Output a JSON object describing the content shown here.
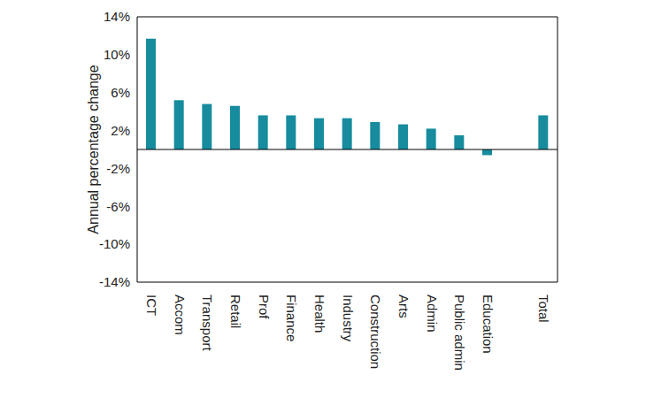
{
  "chart_data": {
    "type": "bar",
    "y_label": "Annual percentage change",
    "categories": [
      "ICT",
      "Accom",
      "Transport",
      "Retail",
      "Prof",
      "Finance",
      "Health",
      "Industry",
      "Construction",
      "Arts",
      "Admin",
      "Public admin",
      "Education",
      null,
      "Total"
    ],
    "values": [
      11.7,
      5.2,
      4.8,
      4.6,
      3.6,
      3.6,
      3.3,
      3.3,
      2.9,
      2.65,
      2.2,
      1.5,
      -0.6,
      null,
      3.6
    ],
    "color": "#168c9e",
    "ylim": [
      -14,
      14
    ],
    "yticks": [
      {
        "value": -14,
        "label": "-14%"
      },
      {
        "value": -10,
        "label": "-10%"
      },
      {
        "value": -6,
        "label": "-6%"
      },
      {
        "value": -2,
        "label": "-2%"
      },
      {
        "value": 2,
        "label": "2%"
      },
      {
        "value": 6,
        "label": "6%"
      },
      {
        "value": 10,
        "label": "10%"
      },
      {
        "value": 14,
        "label": "14%"
      }
    ],
    "grid": false
  }
}
